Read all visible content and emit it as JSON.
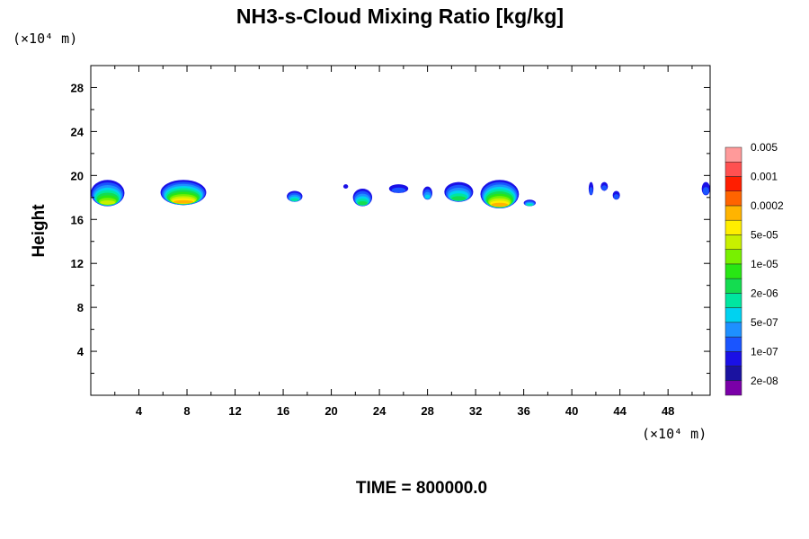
{
  "chart_data": {
    "type": "heatmap",
    "title": "NH3-s-Cloud Mixing Ratio [kg/kg]",
    "ylabel": "Height",
    "y_unit_label": "(×10⁴ m)",
    "x_unit_label": "(×10⁴ m)",
    "time_label": "TIME = 800000.0",
    "xlim": [
      0,
      51.5
    ],
    "ylim": [
      0,
      30
    ],
    "x_ticks": [
      4,
      8,
      12,
      16,
      20,
      24,
      28,
      32,
      36,
      40,
      44,
      48
    ],
    "x_tick_labels": [
      "4",
      "8",
      "12",
      "16",
      "20",
      "24",
      "28",
      "32",
      "36",
      "40",
      "44",
      "48"
    ],
    "y_ticks": [
      4,
      8,
      12,
      16,
      20,
      24,
      28
    ],
    "y_tick_labels": [
      "4",
      "8",
      "12",
      "16",
      "20",
      "24",
      "28"
    ],
    "colorbar": {
      "colors": [
        "#7a00a8",
        "#1a12a0",
        "#1a10e6",
        "#1a55ff",
        "#1e90ff",
        "#00d2f0",
        "#00e6a0",
        "#14dc50",
        "#28e614",
        "#78f000",
        "#c8f000",
        "#ffee00",
        "#ffb400",
        "#ff6400",
        "#ff1e00",
        "#ff5050",
        "#ff9a9a"
      ],
      "labels": [
        "2e-08",
        "1e-07",
        "5e-07",
        "2e-06",
        "1e-05",
        "5e-05",
        "0.0002",
        "0.001",
        "0.005"
      ]
    },
    "cloud_blobs": [
      {
        "x": [
          0.0,
          2.8
        ],
        "y": [
          17.2,
          19.6
        ],
        "peak_level": 10
      },
      {
        "x": [
          5.8,
          9.6
        ],
        "y": [
          17.3,
          19.6
        ],
        "peak_level": 12
      },
      {
        "x": [
          16.3,
          17.6
        ],
        "y": [
          17.6,
          18.6
        ],
        "peak_level": 6
      },
      {
        "x": [
          21.0,
          21.4
        ],
        "y": [
          18.8,
          19.2
        ],
        "peak_level": 2
      },
      {
        "x": [
          21.8,
          23.4
        ],
        "y": [
          17.2,
          18.8
        ],
        "peak_level": 7
      },
      {
        "x": [
          24.8,
          26.4
        ],
        "y": [
          18.4,
          19.2
        ],
        "peak_level": 3
      },
      {
        "x": [
          27.6,
          28.4
        ],
        "y": [
          17.8,
          19.0
        ],
        "peak_level": 5
      },
      {
        "x": [
          29.4,
          31.8
        ],
        "y": [
          17.6,
          19.4
        ],
        "peak_level": 7
      },
      {
        "x": [
          32.4,
          35.6
        ],
        "y": [
          17.0,
          19.6
        ],
        "peak_level": 12
      },
      {
        "x": [
          36.0,
          37.0
        ],
        "y": [
          17.2,
          17.8
        ],
        "peak_level": 6
      },
      {
        "x": [
          41.4,
          41.8
        ],
        "y": [
          18.2,
          19.4
        ],
        "peak_level": 3
      },
      {
        "x": [
          42.4,
          43.0
        ],
        "y": [
          18.6,
          19.4
        ],
        "peak_level": 3
      },
      {
        "x": [
          43.4,
          44.0
        ],
        "y": [
          17.8,
          18.6
        ],
        "peak_level": 3
      },
      {
        "x": [
          50.8,
          51.5
        ],
        "y": [
          18.2,
          19.4
        ],
        "peak_level": 3
      }
    ]
  }
}
